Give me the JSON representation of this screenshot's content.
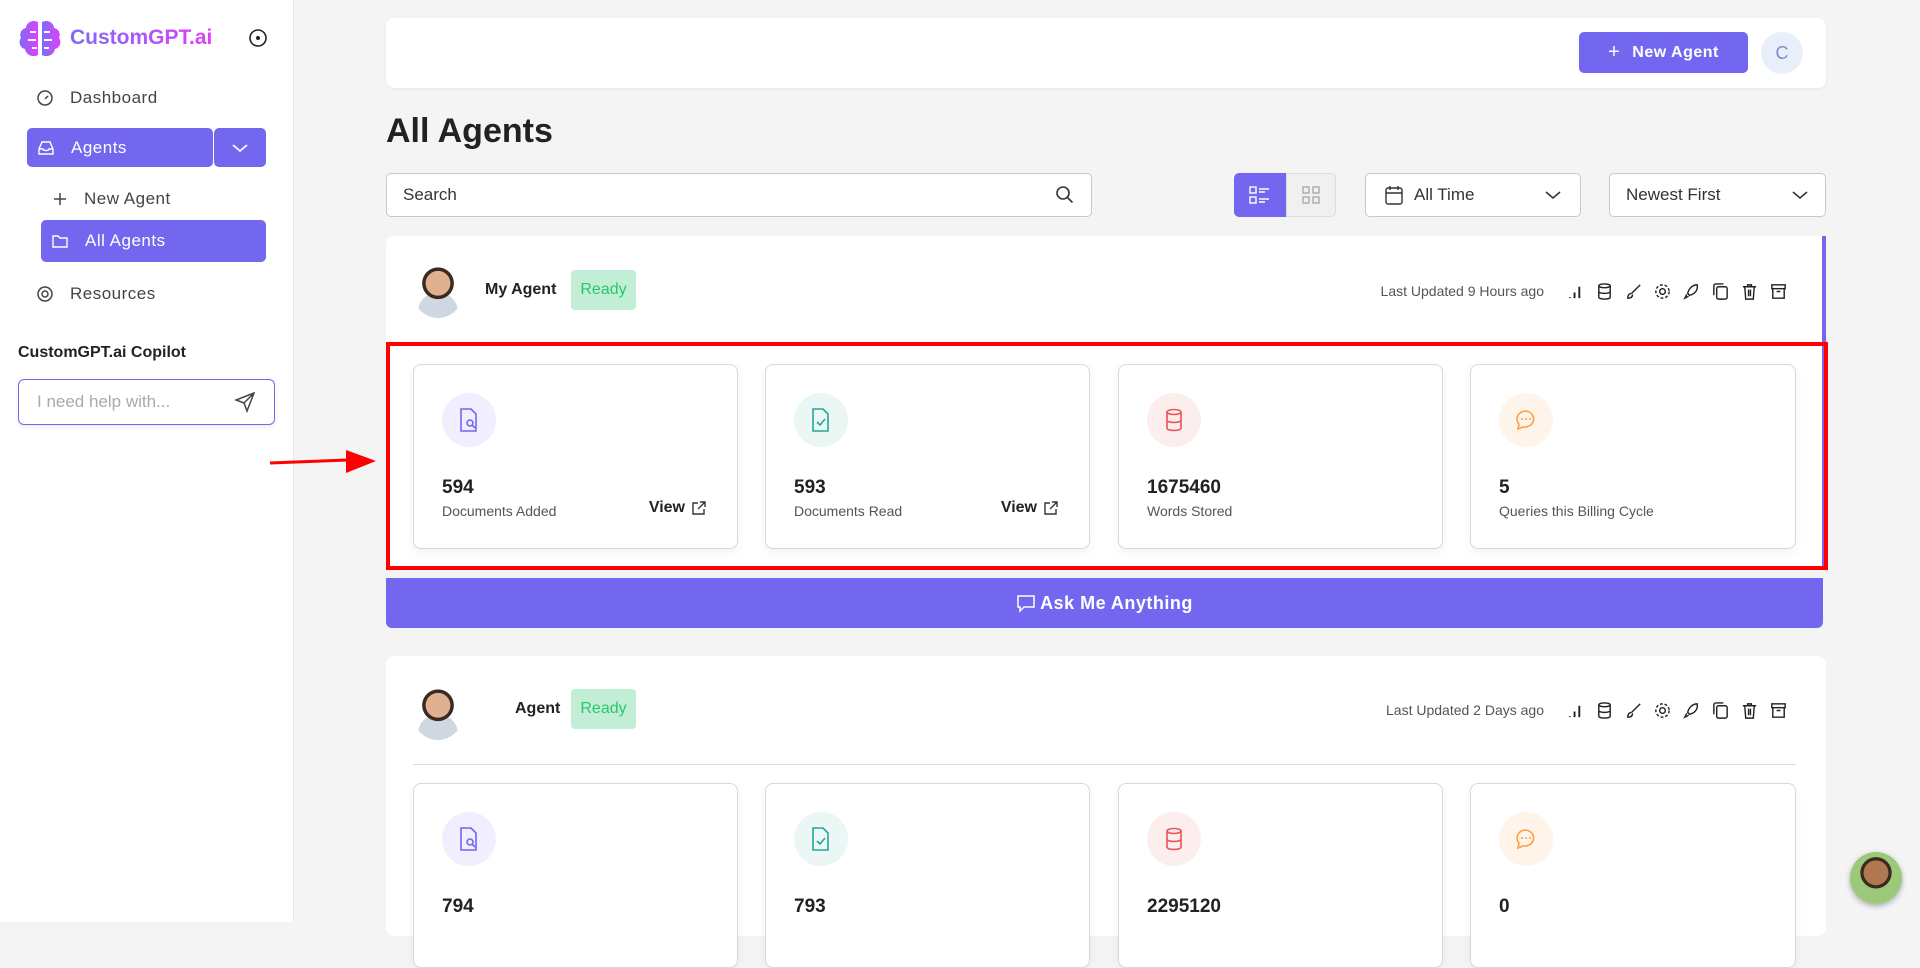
{
  "brand": {
    "name": "CustomGPT.ai"
  },
  "sidebar": {
    "items": [
      {
        "label": "Dashboard",
        "icon": "gauge-icon"
      },
      {
        "label": "Agents",
        "icon": "inbox-icon"
      },
      {
        "label": "New Agent",
        "icon": "plus-icon"
      },
      {
        "label": "All Agents",
        "icon": "folder-icon"
      },
      {
        "label": "Resources",
        "icon": "lifebuoy-icon"
      }
    ],
    "copilot": {
      "title": "CustomGPT.ai Copilot",
      "placeholder": "I need help with..."
    }
  },
  "header": {
    "new_agent": "New Agent",
    "user_initial": "C"
  },
  "page": {
    "title": "All Agents",
    "search_placeholder": "Search",
    "date_filter": "All Time",
    "sort": "Newest First"
  },
  "colors": {
    "accent": "#7367f0",
    "ready": "#28c76f",
    "highlight": "#ff0000"
  },
  "agents": [
    {
      "name": "My Agent",
      "status": "Ready",
      "updated": "Last Updated 9 Hours ago",
      "stats": [
        {
          "value": "594",
          "label": "Documents Added",
          "link": "View"
        },
        {
          "value": "593",
          "label": "Documents Read",
          "link": "View"
        },
        {
          "value": "1675460",
          "label": "Words Stored"
        },
        {
          "value": "5",
          "label": "Queries this Billing Cycle"
        }
      ],
      "ask": "Ask Me Anything"
    },
    {
      "name": "Agent",
      "status": "Ready",
      "updated": "Last Updated 2 Days ago",
      "stats": [
        {
          "value": "794"
        },
        {
          "value": "793"
        },
        {
          "value": "2295120"
        },
        {
          "value": "0"
        }
      ]
    }
  ]
}
